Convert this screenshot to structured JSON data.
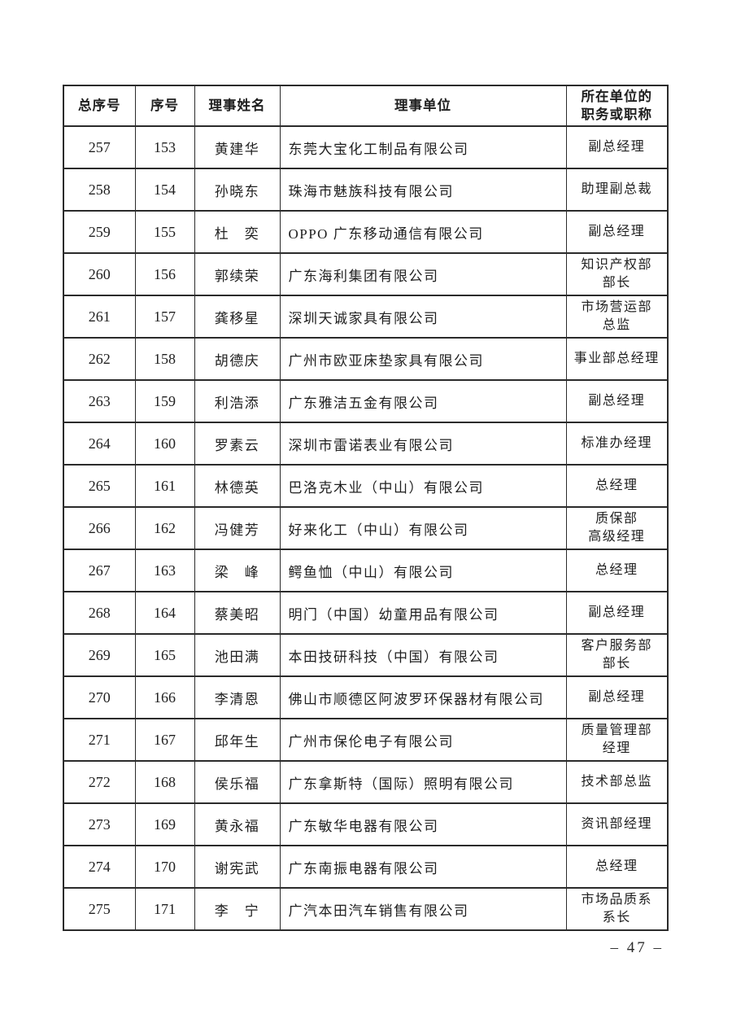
{
  "page": {
    "page_number": "– 47 –"
  },
  "table": {
    "headers": [
      "总序号",
      "序号",
      "理事姓名",
      "理事单位",
      "所在单位的\n职务或职称"
    ],
    "rows": [
      {
        "total_no": "257",
        "no": "153",
        "name": "黄建华",
        "company": "东莞大宝化工制品有限公司",
        "position": "副总经理"
      },
      {
        "total_no": "258",
        "no": "154",
        "name": "孙晓东",
        "company": "珠海市魅族科技有限公司",
        "position": "助理副总裁"
      },
      {
        "total_no": "259",
        "no": "155",
        "name": "杜　奕",
        "company": "OPPO 广东移动通信有限公司",
        "position": "副总经理"
      },
      {
        "total_no": "260",
        "no": "156",
        "name": "郭续荣",
        "company": "广东海利集团有限公司",
        "position": "知识产权部\n部长"
      },
      {
        "total_no": "261",
        "no": "157",
        "name": "龚移星",
        "company": "深圳天诚家具有限公司",
        "position": "市场营运部\n总监"
      },
      {
        "total_no": "262",
        "no": "158",
        "name": "胡德庆",
        "company": "广州市欧亚床垫家具有限公司",
        "position": "事业部总经理"
      },
      {
        "total_no": "263",
        "no": "159",
        "name": "利浩添",
        "company": "广东雅洁五金有限公司",
        "position": "副总经理"
      },
      {
        "total_no": "264",
        "no": "160",
        "name": "罗素云",
        "company": "深圳市雷诺表业有限公司",
        "position": "标准办经理"
      },
      {
        "total_no": "265",
        "no": "161",
        "name": "林德英",
        "company": "巴洛克木业（中山）有限公司",
        "position": "总经理"
      },
      {
        "total_no": "266",
        "no": "162",
        "name": "冯健芳",
        "company": "好来化工（中山）有限公司",
        "position": "质保部\n高级经理"
      },
      {
        "total_no": "267",
        "no": "163",
        "name": "梁　峰",
        "company": "鳄鱼恤（中山）有限公司",
        "position": "总经理"
      },
      {
        "total_no": "268",
        "no": "164",
        "name": "蔡美昭",
        "company": "明门（中国）幼童用品有限公司",
        "position": "副总经理"
      },
      {
        "total_no": "269",
        "no": "165",
        "name": "池田满",
        "company": "本田技研科技（中国）有限公司",
        "position": "客户服务部\n部长"
      },
      {
        "total_no": "270",
        "no": "166",
        "name": "李清恩",
        "company": "佛山市顺德区阿波罗环保器材有限公司",
        "position": "副总经理"
      },
      {
        "total_no": "271",
        "no": "167",
        "name": "邱年生",
        "company": "广州市保伦电子有限公司",
        "position": "质量管理部\n经理"
      },
      {
        "total_no": "272",
        "no": "168",
        "name": "侯乐福",
        "company": "广东拿斯特（国际）照明有限公司",
        "position": "技术部总监"
      },
      {
        "total_no": "273",
        "no": "169",
        "name": "黄永福",
        "company": "广东敏华电器有限公司",
        "position": "资讯部经理"
      },
      {
        "total_no": "274",
        "no": "170",
        "name": "谢宪武",
        "company": "广东南振电器有限公司",
        "position": "总经理"
      },
      {
        "total_no": "275",
        "no": "171",
        "name": "李　宁",
        "company": "广汽本田汽车销售有限公司",
        "position": "市场品质系\n系长"
      }
    ]
  }
}
